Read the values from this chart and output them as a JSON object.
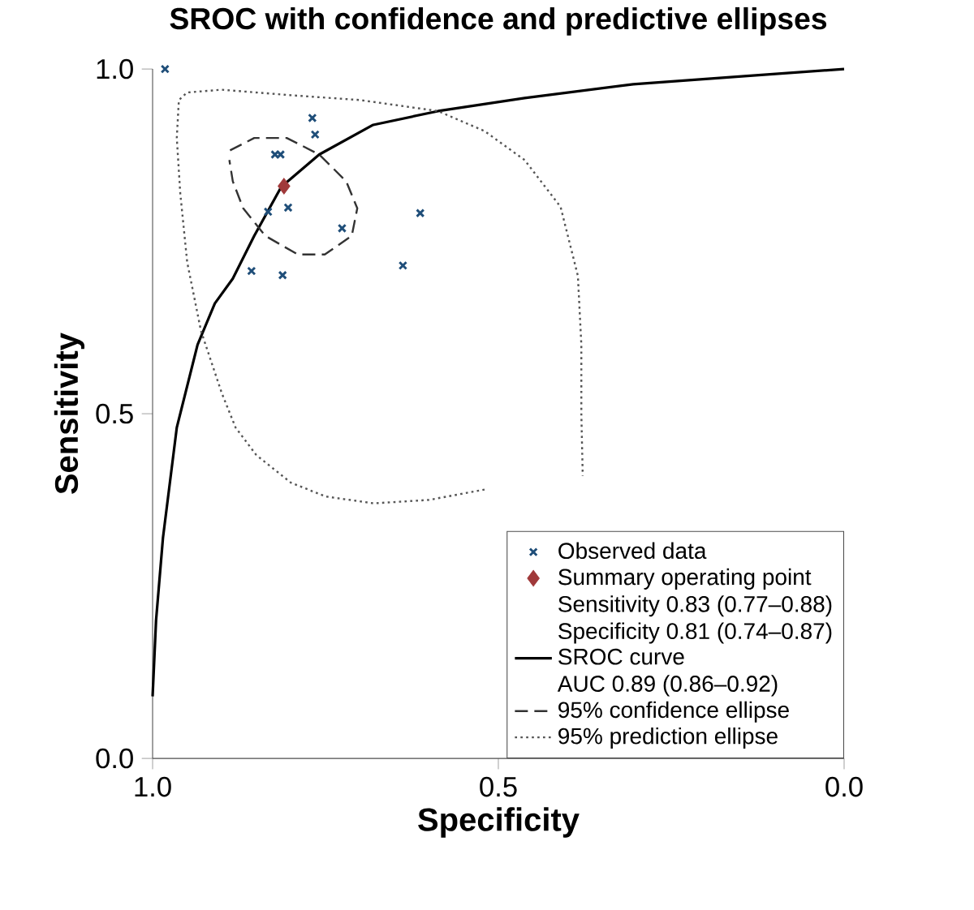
{
  "chart_data": {
    "type": "scatter",
    "title": "SROC with confidence and predictive ellipses",
    "xlabel": "Specificity",
    "ylabel": "Sensitivity",
    "xlim": [
      1,
      0
    ],
    "ylim": [
      0,
      1
    ],
    "xticks": [
      {
        "value": 1,
        "label": "1.0"
      },
      {
        "value": 0.5,
        "label": "0.5"
      },
      {
        "value": 0,
        "label": "0.0"
      }
    ],
    "yticks": [
      {
        "value": 0,
        "label": "0.0"
      },
      {
        "value": 0.5,
        "label": "0.5"
      },
      {
        "value": 1,
        "label": "1.0"
      }
    ],
    "legend": "bottom right",
    "annotations": [
      "Sensitivity 0.83 (0.77–0.88)",
      "Specificity 0.81 (0.74–0.87)",
      "AUC 0.89 (0.86–0.92)"
    ],
    "series": [
      {
        "name": "Observed data",
        "marker": "cross",
        "color": "#1f4e79",
        "x": [
          0.982,
          0.769,
          0.765,
          0.823,
          0.815,
          0.833,
          0.804,
          0.726,
          0.613,
          0.638,
          0.857,
          0.812
        ],
        "values": [
          1.0,
          0.929,
          0.905,
          0.876,
          0.876,
          0.793,
          0.799,
          0.769,
          0.791,
          0.715,
          0.707,
          0.701
        ]
      },
      {
        "name": "Summary operating point",
        "marker": "diamond",
        "color": "#a0393a",
        "x": [
          0.81
        ],
        "values": [
          0.83
        ]
      },
      {
        "name": "SROC curve",
        "type": "line",
        "line_style": "solid",
        "color": "#000000",
        "x": [
          1.0,
          0.995,
          0.985,
          0.965,
          0.935,
          0.91,
          0.884,
          0.853,
          0.814,
          0.759,
          0.681,
          0.587,
          0.462,
          0.305,
          0.14,
          0.0
        ],
        "values": [
          0.09,
          0.2,
          0.32,
          0.48,
          0.6,
          0.66,
          0.696,
          0.758,
          0.829,
          0.876,
          0.919,
          0.939,
          0.958,
          0.978,
          0.99,
          1.0
        ]
      },
      {
        "name": "95% confidence ellipse",
        "type": "line",
        "line_style": "dashed",
        "color": "#333333",
        "x": [
          0.888,
          0.853,
          0.806,
          0.759,
          0.72,
          0.704,
          0.712,
          0.751,
          0.79,
          0.837,
          0.869,
          0.884,
          0.889
        ],
        "values": [
          0.882,
          0.9,
          0.9,
          0.876,
          0.837,
          0.798,
          0.758,
          0.731,
          0.731,
          0.758,
          0.798,
          0.837,
          0.868
        ]
      },
      {
        "name": "95% prediction ellipse",
        "type": "line",
        "line_style": "dotted",
        "color": "#555555",
        "x": [
          0.52,
          0.6,
          0.68,
          0.75,
          0.8,
          0.85,
          0.88,
          0.9,
          0.93,
          0.95,
          0.96,
          0.965,
          0.962,
          0.95,
          0.9,
          0.8,
          0.7,
          0.587,
          0.52,
          0.462,
          0.41,
          0.385,
          0.38,
          0.38,
          0.378
        ],
        "values": [
          0.39,
          0.375,
          0.37,
          0.38,
          0.4,
          0.44,
          0.48,
          0.53,
          0.62,
          0.72,
          0.82,
          0.9,
          0.955,
          0.966,
          0.97,
          0.962,
          0.955,
          0.939,
          0.91,
          0.868,
          0.8,
          0.7,
          0.6,
          0.5,
          0.41
        ]
      }
    ]
  }
}
